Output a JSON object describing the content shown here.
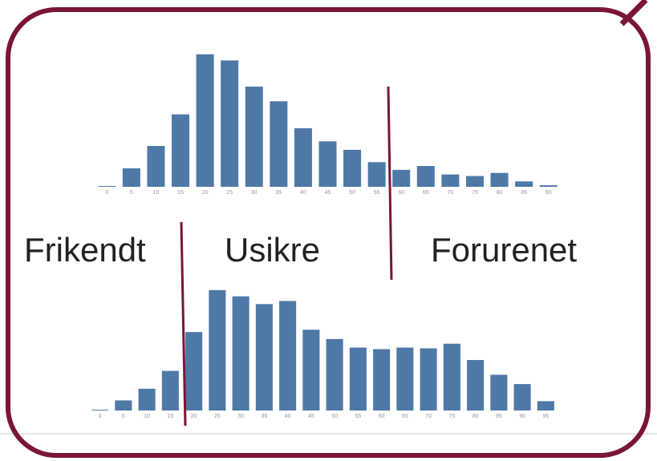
{
  "chart_data": [
    {
      "type": "bar",
      "color": "#4e79a7",
      "categories": [
        "0",
        "5",
        "10",
        "15",
        "20",
        "25",
        "30",
        "35",
        "40",
        "45",
        "50",
        "55",
        "60",
        "65",
        "70",
        "75",
        "80",
        "85",
        "90"
      ],
      "values": [
        1,
        24,
        53,
        94,
        172,
        164,
        130,
        111,
        76,
        59,
        48,
        32,
        22,
        27,
        16,
        14,
        18,
        7,
        2
      ],
      "ylim": [
        0,
        180
      ]
    },
    {
      "type": "bar",
      "color": "#4e79a7",
      "categories": [
        "0",
        "5",
        "10",
        "15",
        "20",
        "25",
        "30",
        "35",
        "40",
        "45",
        "50",
        "55",
        "60",
        "65",
        "70",
        "75",
        "80",
        "85",
        "90",
        "95"
      ],
      "values": [
        1,
        13,
        28,
        51,
        101,
        155,
        147,
        137,
        141,
        104,
        92,
        81,
        79,
        81,
        80,
        86,
        65,
        46,
        34,
        12
      ],
      "ylim": [
        0,
        160
      ]
    }
  ],
  "annotations": [
    "Frikendt",
    "Usikre",
    "Forurenet"
  ]
}
